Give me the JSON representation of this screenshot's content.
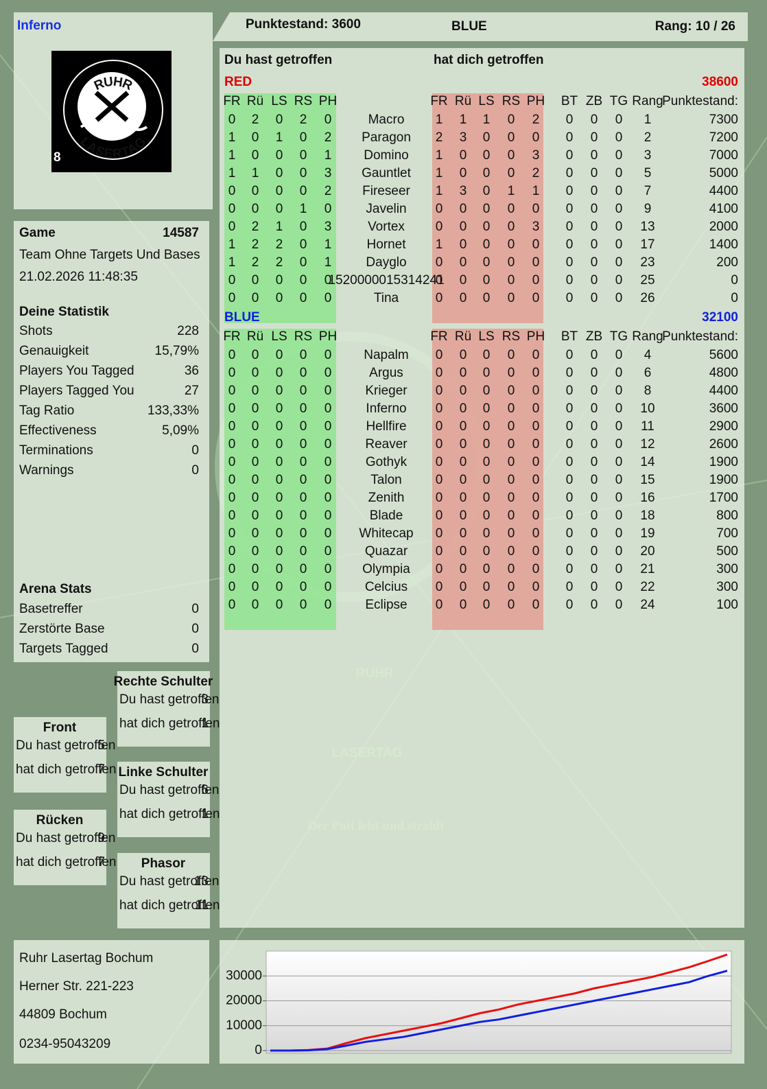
{
  "header": {
    "player": "Inferno",
    "score": "Punktestand: 3600",
    "team": "BLUE",
    "rank": "Rang: 10 / 26"
  },
  "logo": {
    "top": "RUHR",
    "bottom": "LASERTAG",
    "badge": "8"
  },
  "watermark": {
    "line1": "RUHR",
    "line2": "LASERTAG",
    "slogan": "Der Pott lebt und strahlt"
  },
  "game": {
    "label": "Game",
    "id": 14587,
    "mode": "Team Ohne Targets Und Bases",
    "datetime": "21.02.2026 11:48:35"
  },
  "statistics": {
    "title": "Deine Statistik",
    "rows": [
      [
        "Shots",
        228
      ],
      [
        "Genauigkeit",
        "15,79%"
      ],
      [
        "Players You Tagged",
        36
      ],
      [
        "Players Tagged You",
        27
      ],
      [
        "Tag Ratio",
        "133,33%"
      ],
      [
        "Effectiveness",
        "5,09%"
      ],
      [
        "Terminations",
        0
      ],
      [
        "Warnings",
        0
      ]
    ]
  },
  "arena": {
    "title": "Arena Stats",
    "rows": [
      [
        "Basetreffer",
        0
      ],
      [
        "Zerstörte Base",
        0
      ],
      [
        "Targets Tagged",
        0
      ]
    ]
  },
  "hit_zones": [
    {
      "title": "Rechte Schulter",
      "rows": [
        [
          "Du hast getroffen",
          3
        ],
        [
          "hat dich getroffen",
          1
        ]
      ]
    },
    {
      "title": "Front",
      "rows": [
        [
          "Du hast getroffen",
          5
        ],
        [
          "hat dich getroffen",
          7
        ]
      ]
    },
    {
      "title": "Linke Schulter",
      "rows": [
        [
          "Du hast getroffen",
          6
        ],
        [
          "hat dich getroffen",
          1
        ]
      ]
    },
    {
      "title": "Rücken",
      "rows": [
        [
          "Du hast getroffen",
          9
        ],
        [
          "hat dich getroffen",
          7
        ]
      ]
    },
    {
      "title": "Phasor",
      "rows": [
        [
          "Du hast getroffen",
          13
        ],
        [
          "hat dich getroffen",
          11
        ]
      ]
    }
  ],
  "address": [
    "Ruhr Lasertag Bochum",
    "Herner Str. 221-223",
    "44809 Bochum",
    "0234-95043209"
  ],
  "table": {
    "headings": [
      "Du hast getroffen",
      "hat dich getroffen"
    ],
    "columns": {
      "hit": [
        "FR",
        "Rü",
        "LS",
        "RS",
        "PH"
      ],
      "stats": [
        "BT",
        "ZB",
        "TG",
        "Rang",
        "Punktestand:"
      ]
    },
    "teams": [
      {
        "name": "RED",
        "score": 38600,
        "rows": [
          {
            "player": "Macro",
            "you_hit": [
              0,
              2,
              0,
              2,
              0
            ],
            "hit_you": [
              1,
              1,
              1,
              0,
              2
            ],
            "stats": [
              0,
              0,
              0,
              1,
              7300
            ]
          },
          {
            "player": "Paragon",
            "you_hit": [
              1,
              0,
              1,
              0,
              2
            ],
            "hit_you": [
              2,
              3,
              0,
              0,
              0
            ],
            "stats": [
              0,
              0,
              0,
              2,
              7200
            ]
          },
          {
            "player": "Domino",
            "you_hit": [
              1,
              0,
              0,
              0,
              1
            ],
            "hit_you": [
              1,
              0,
              0,
              0,
              3
            ],
            "stats": [
              0,
              0,
              0,
              3,
              7000
            ]
          },
          {
            "player": "Gauntlet",
            "you_hit": [
              1,
              1,
              0,
              0,
              3
            ],
            "hit_you": [
              1,
              0,
              0,
              0,
              2
            ],
            "stats": [
              0,
              0,
              0,
              5,
              5000
            ]
          },
          {
            "player": "Fireseer",
            "you_hit": [
              0,
              0,
              0,
              0,
              2
            ],
            "hit_you": [
              1,
              3,
              0,
              1,
              1
            ],
            "stats": [
              0,
              0,
              0,
              7,
              4400
            ]
          },
          {
            "player": "Javelin",
            "you_hit": [
              0,
              0,
              0,
              1,
              0
            ],
            "hit_you": [
              0,
              0,
              0,
              0,
              0
            ],
            "stats": [
              0,
              0,
              0,
              9,
              4100
            ]
          },
          {
            "player": "Vortex",
            "you_hit": [
              0,
              2,
              1,
              0,
              3
            ],
            "hit_you": [
              0,
              0,
              0,
              0,
              3
            ],
            "stats": [
              0,
              0,
              0,
              13,
              2000
            ]
          },
          {
            "player": "Hornet",
            "you_hit": [
              1,
              2,
              2,
              0,
              1
            ],
            "hit_you": [
              1,
              0,
              0,
              0,
              0
            ],
            "stats": [
              0,
              0,
              0,
              17,
              1400
            ]
          },
          {
            "player": "Dayglo",
            "you_hit": [
              1,
              2,
              2,
              0,
              1
            ],
            "hit_you": [
              0,
              0,
              0,
              0,
              0
            ],
            "stats": [
              0,
              0,
              0,
              23,
              200
            ]
          },
          {
            "player": "1520000015314241",
            "you_hit": [
              0,
              0,
              0,
              0,
              0
            ],
            "hit_you": [
              0,
              0,
              0,
              0,
              0
            ],
            "stats": [
              0,
              0,
              0,
              25,
              0
            ]
          },
          {
            "player": "Tina",
            "you_hit": [
              0,
              0,
              0,
              0,
              0
            ],
            "hit_you": [
              0,
              0,
              0,
              0,
              0
            ],
            "stats": [
              0,
              0,
              0,
              26,
              0
            ]
          }
        ]
      },
      {
        "name": "BLUE",
        "score": 32100,
        "rows": [
          {
            "player": "Napalm",
            "you_hit": [
              0,
              0,
              0,
              0,
              0
            ],
            "hit_you": [
              0,
              0,
              0,
              0,
              0
            ],
            "stats": [
              0,
              0,
              0,
              4,
              5600
            ]
          },
          {
            "player": "Argus",
            "you_hit": [
              0,
              0,
              0,
              0,
              0
            ],
            "hit_you": [
              0,
              0,
              0,
              0,
              0
            ],
            "stats": [
              0,
              0,
              0,
              6,
              4800
            ]
          },
          {
            "player": "Krieger",
            "you_hit": [
              0,
              0,
              0,
              0,
              0
            ],
            "hit_you": [
              0,
              0,
              0,
              0,
              0
            ],
            "stats": [
              0,
              0,
              0,
              8,
              4400
            ]
          },
          {
            "player": "Inferno",
            "you_hit": [
              0,
              0,
              0,
              0,
              0
            ],
            "hit_you": [
              0,
              0,
              0,
              0,
              0
            ],
            "stats": [
              0,
              0,
              0,
              10,
              3600
            ]
          },
          {
            "player": "Hellfire",
            "you_hit": [
              0,
              0,
              0,
              0,
              0
            ],
            "hit_you": [
              0,
              0,
              0,
              0,
              0
            ],
            "stats": [
              0,
              0,
              0,
              11,
              2900
            ]
          },
          {
            "player": "Reaver",
            "you_hit": [
              0,
              0,
              0,
              0,
              0
            ],
            "hit_you": [
              0,
              0,
              0,
              0,
              0
            ],
            "stats": [
              0,
              0,
              0,
              12,
              2600
            ]
          },
          {
            "player": "Gothyk",
            "you_hit": [
              0,
              0,
              0,
              0,
              0
            ],
            "hit_you": [
              0,
              0,
              0,
              0,
              0
            ],
            "stats": [
              0,
              0,
              0,
              14,
              1900
            ]
          },
          {
            "player": "Talon",
            "you_hit": [
              0,
              0,
              0,
              0,
              0
            ],
            "hit_you": [
              0,
              0,
              0,
              0,
              0
            ],
            "stats": [
              0,
              0,
              0,
              15,
              1900
            ]
          },
          {
            "player": "Zenith",
            "you_hit": [
              0,
              0,
              0,
              0,
              0
            ],
            "hit_you": [
              0,
              0,
              0,
              0,
              0
            ],
            "stats": [
              0,
              0,
              0,
              16,
              1700
            ]
          },
          {
            "player": "Blade",
            "you_hit": [
              0,
              0,
              0,
              0,
              0
            ],
            "hit_you": [
              0,
              0,
              0,
              0,
              0
            ],
            "stats": [
              0,
              0,
              0,
              18,
              800
            ]
          },
          {
            "player": "Whitecap",
            "you_hit": [
              0,
              0,
              0,
              0,
              0
            ],
            "hit_you": [
              0,
              0,
              0,
              0,
              0
            ],
            "stats": [
              0,
              0,
              0,
              19,
              700
            ]
          },
          {
            "player": "Quazar",
            "you_hit": [
              0,
              0,
              0,
              0,
              0
            ],
            "hit_you": [
              0,
              0,
              0,
              0,
              0
            ],
            "stats": [
              0,
              0,
              0,
              20,
              500
            ]
          },
          {
            "player": "Olympia",
            "you_hit": [
              0,
              0,
              0,
              0,
              0
            ],
            "hit_you": [
              0,
              0,
              0,
              0,
              0
            ],
            "stats": [
              0,
              0,
              0,
              21,
              300
            ]
          },
          {
            "player": "Celcius",
            "you_hit": [
              0,
              0,
              0,
              0,
              0
            ],
            "hit_you": [
              0,
              0,
              0,
              0,
              0
            ],
            "stats": [
              0,
              0,
              0,
              22,
              300
            ]
          },
          {
            "player": "Eclipse",
            "you_hit": [
              0,
              0,
              0,
              0,
              0
            ],
            "hit_you": [
              0,
              0,
              0,
              0,
              0
            ],
            "stats": [
              0,
              0,
              0,
              24,
              100
            ]
          }
        ]
      }
    ]
  },
  "chart_data": {
    "type": "line",
    "categories": [
      null,
      null,
      null,
      null,
      null,
      null,
      null,
      null,
      null,
      null,
      null,
      null,
      null,
      null,
      null,
      null,
      null,
      null,
      null,
      null,
      null,
      null,
      null,
      null,
      null
    ],
    "series": [
      {
        "color": "#e81010",
        "values": [
          0,
          0,
          200,
          800,
          3000,
          5000,
          6500,
          8000,
          9500,
          11000,
          13000,
          15000,
          16500,
          18500,
          20000,
          21500,
          23000,
          25000,
          26500,
          28000,
          29500,
          31500,
          33500,
          36000,
          38600
        ]
      },
      {
        "color": "#1020e0",
        "values": [
          0,
          0,
          100,
          600,
          2000,
          3500,
          4500,
          5500,
          7000,
          8500,
          10000,
          11500,
          12500,
          14000,
          15500,
          17000,
          18500,
          20000,
          21500,
          23000,
          24500,
          26000,
          27500,
          30000,
          32100
        ]
      }
    ],
    "ylim": [
      0,
      40000
    ],
    "yticks": [
      0,
      10000,
      20000,
      30000
    ],
    "grid": true
  }
}
